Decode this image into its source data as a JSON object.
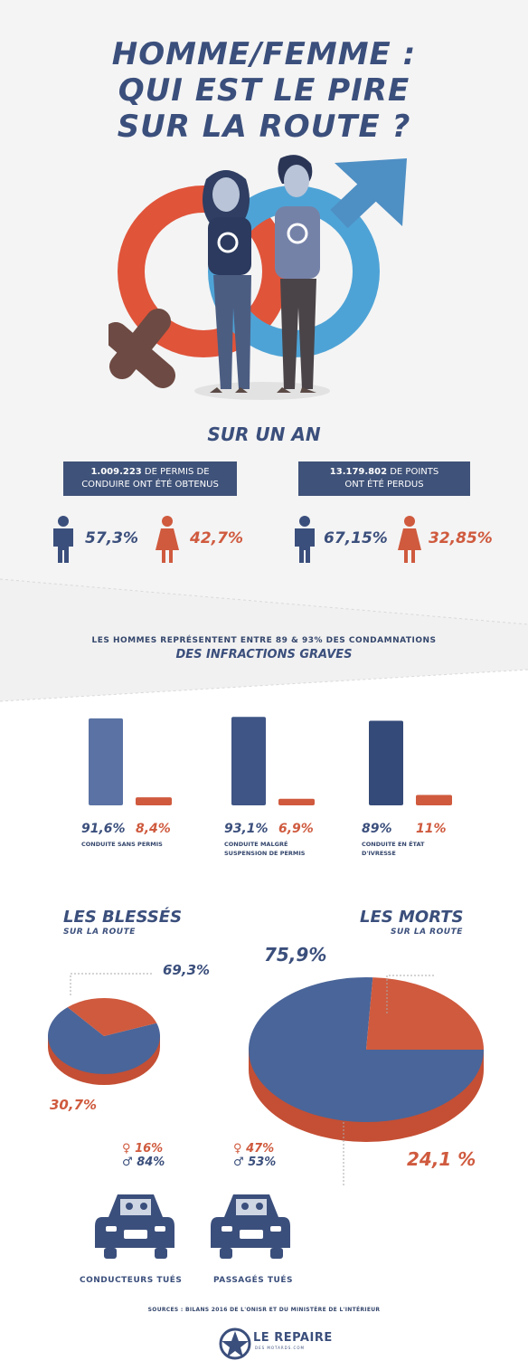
{
  "title": {
    "line1": "HOMME/FEMME :",
    "line2": "QUI EST LE PIRE",
    "line3": "SUR LA ROUTE ?"
  },
  "colors": {
    "navy": "#3b4f7c",
    "blue": "#4e8fc4",
    "red": "#cf5a3e",
    "grey": "#6a4a42",
    "background": "#f4f4f4"
  },
  "year": {
    "heading": "SUR UN AN"
  },
  "permits": {
    "box_line1_number": "1.009.223",
    "box_line1_text": " DE PERMIS DE",
    "box_line2": "CONDUIRE ONT ÉTÉ OBTENUS",
    "men_pct": "57,3%",
    "women_pct": "42,7%",
    "men_value": 57.3,
    "women_value": 42.7
  },
  "points": {
    "box_line1_number": "13.179.802",
    "box_line1_text": " DE POINTS",
    "box_line2": "ONT ÉTÉ PERDUS",
    "men_pct": "67,15%",
    "women_pct": "32,85%",
    "men_value": 67.15,
    "women_value": 32.85
  },
  "infractions": {
    "line1": "LES HOMMES REPRÉSENTENT ENTRE 89 & 93% DES CONDAMNATIONS",
    "line2": "DES INFRACTIONS GRAVES"
  },
  "chart_data": [
    {
      "type": "bar",
      "categories": [
        "CONDUITE SANS PERMIS",
        "CONDUITE MALGRÉ SUSPENSION DE PERMIS",
        "CONDUITE EN ÉTAT D'IVRESSE"
      ],
      "series": [
        {
          "values": [
            91.6,
            93.1,
            89
          ]
        },
        {
          "values": [
            8.4,
            6.9,
            11
          ]
        }
      ],
      "value_labels": [
        [
          "91,6%",
          "8,4%"
        ],
        [
          "93,1%",
          "6,9%"
        ],
        [
          "89%",
          "11%"
        ]
      ],
      "category_lines": [
        [
          "CONDUITE SANS PERMIS"
        ],
        [
          "CONDUITE MALGRÉ",
          "SUSPENSION DE PERMIS"
        ],
        [
          "CONDUITE EN ÉTAT",
          "D'IVRESSE"
        ]
      ],
      "ylim": [
        0,
        100
      ]
    },
    {
      "type": "pie",
      "title": "LES BLESSÉS",
      "subtitle": "SUR LA ROUTE",
      "slices": [
        {
          "value": 69.3,
          "label": "69,3%",
          "color": "#4a6599"
        },
        {
          "value": 30.7,
          "label": "30,7%",
          "color": "#cf5a3e"
        }
      ]
    },
    {
      "type": "pie",
      "title": "LES MORTS",
      "subtitle": "SUR LA ROUTE",
      "slices": [
        {
          "value": 75.9,
          "label": "75,9%",
          "color": "#4a6599"
        },
        {
          "value": 24.1,
          "label": "24,1 %",
          "color": "#cf5a3e"
        }
      ]
    }
  ],
  "conducteurs": {
    "women_pct": "16%",
    "men_pct": "84%",
    "label": "CONDUCTEURS TUÉS"
  },
  "passages": {
    "women_pct": "47%",
    "men_pct": "53%",
    "label": "PASSAGÉS TUÉS"
  },
  "sources": "SOURCES : BILANS 2016 DE L'ONISR ET DU MINISTÈRE DE L'INTÉRIEUR",
  "logo": {
    "name": "LE REPAIRE",
    "tagline": "DES MOTARDS.COM"
  }
}
